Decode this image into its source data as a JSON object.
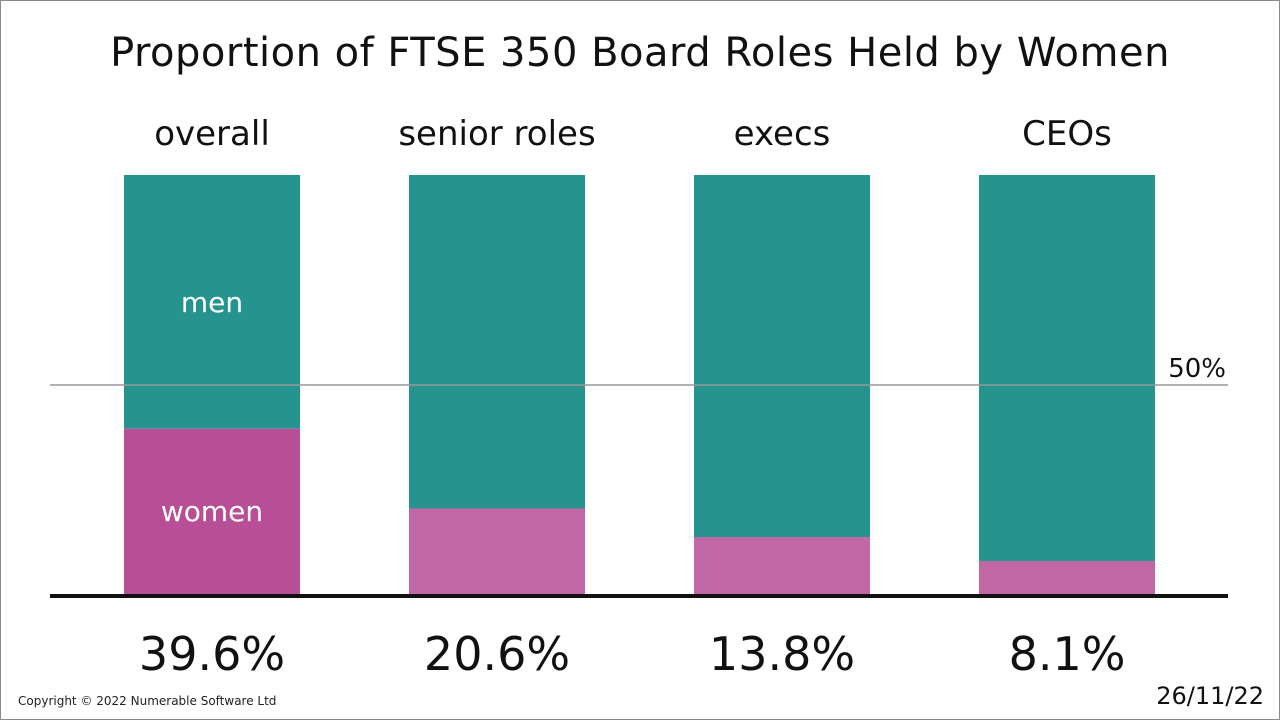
{
  "title": "Proportion of FTSE 350 Board Roles Held by Women",
  "copyright": "Copyright © 2022 Numerable Software Ltd",
  "date": "26/11/22",
  "reference_line": {
    "value": 50,
    "label": "50%"
  },
  "segment_labels": {
    "men": "men",
    "women": "women"
  },
  "colors": {
    "men": "#25948f",
    "women_first": "#b84f96",
    "women": "#c267a5",
    "reference_line": "#999999",
    "baseline": "#111111"
  },
  "chart_data": {
    "type": "bar",
    "stacked": true,
    "categories": [
      "overall",
      "senior roles",
      "execs",
      "CEOs"
    ],
    "series": [
      {
        "name": "women",
        "values": [
          39.6,
          20.6,
          13.8,
          8.1
        ]
      },
      {
        "name": "men",
        "values": [
          60.4,
          79.4,
          86.2,
          91.9
        ]
      }
    ],
    "value_labels": [
      "39.6%",
      "20.6%",
      "13.8%",
      "8.1%"
    ],
    "ylim": [
      0,
      100
    ],
    "grid": false,
    "legend": "none"
  }
}
